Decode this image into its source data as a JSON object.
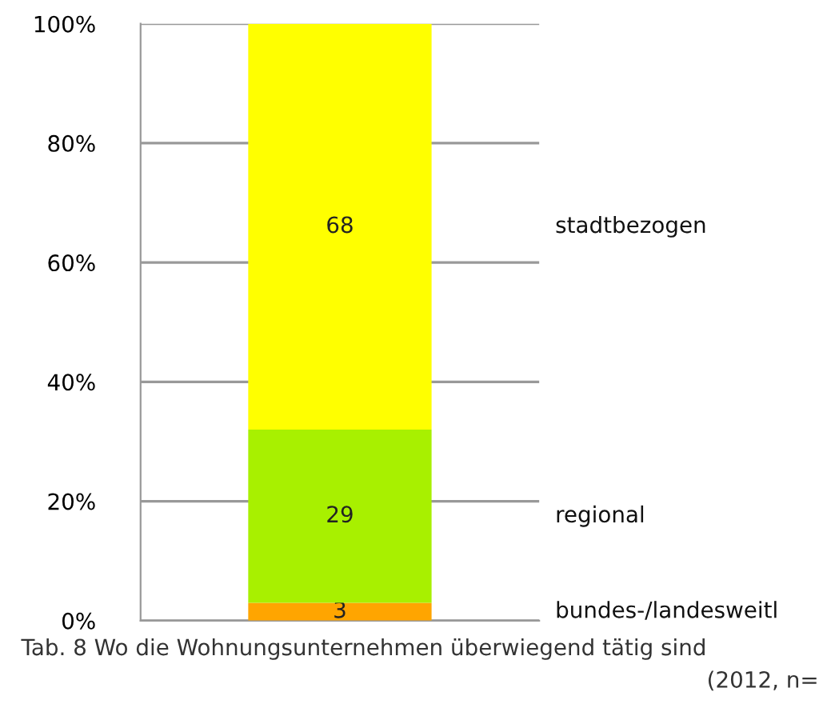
{
  "chart_data": {
    "type": "bar",
    "stacked": true,
    "categories": [
      null
    ],
    "series": [
      {
        "name": "bundes-/landesweitl",
        "color": "#ffa500",
        "values": [
          3
        ]
      },
      {
        "name": "regional",
        "color": "#a8f000",
        "values": [
          29
        ]
      },
      {
        "name": "stadtbezogen",
        "color": "#ffff00",
        "values": [
          68
        ]
      }
    ],
    "ylim": [
      0,
      100
    ],
    "yticks": [
      {
        "value": 0,
        "label": "0%"
      },
      {
        "value": 20,
        "label": "20%"
      },
      {
        "value": 40,
        "label": "40%"
      },
      {
        "value": 60,
        "label": "60%"
      },
      {
        "value": 80,
        "label": "80%"
      },
      {
        "value": 100,
        "label": "100%"
      }
    ],
    "grid": "y",
    "data_labels": true,
    "legend": false,
    "annotations": [
      "Tab. 8 Wo die Wohnungsunternehmen überwiegend tätig sind",
      "(2012, n="
    ]
  }
}
